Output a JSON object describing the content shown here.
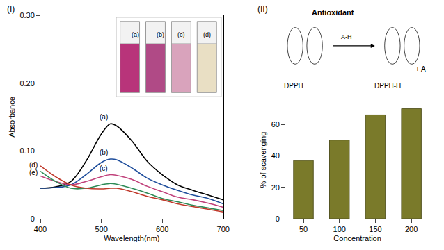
{
  "chart_data": [
    {
      "type": "line",
      "title": "(I)",
      "x_label": "Wavelength(nm)",
      "y_label": "Absorbance",
      "x": [
        400,
        425,
        450,
        475,
        500,
        515,
        525,
        550,
        575,
        600,
        625,
        650,
        675,
        700
      ],
      "series": [
        {
          "name": "(a)",
          "color": "#000000",
          "values": [
            0.045,
            0.047,
            0.055,
            0.085,
            0.125,
            0.14,
            0.137,
            0.115,
            0.085,
            0.065,
            0.05,
            0.042,
            0.035,
            0.028
          ]
        },
        {
          "name": "(b)",
          "color": "#1f4e9c",
          "values": [
            0.045,
            0.046,
            0.05,
            0.065,
            0.083,
            0.088,
            0.087,
            0.075,
            0.06,
            0.05,
            0.042,
            0.035,
            0.03,
            0.022
          ]
        },
        {
          "name": "(c)",
          "color": "#c0407a",
          "values": [
            0.063,
            0.055,
            0.05,
            0.055,
            0.062,
            0.065,
            0.064,
            0.058,
            0.048,
            0.04,
            0.032,
            0.028,
            0.023,
            0.017
          ]
        },
        {
          "name": "(d)",
          "color": "#2e8b57",
          "values": [
            0.07,
            0.055,
            0.045,
            0.045,
            0.05,
            0.052,
            0.051,
            0.045,
            0.038,
            0.03,
            0.025,
            0.02,
            0.016,
            0.012
          ]
        },
        {
          "name": "(e)",
          "color": "#c0392b",
          "values": [
            0.078,
            0.062,
            0.05,
            0.045,
            0.044,
            0.045,
            0.045,
            0.04,
            0.033,
            0.028,
            0.022,
            0.018,
            0.014,
            0.01
          ]
        }
      ],
      "xlim": [
        400,
        700
      ],
      "xticks": [
        400,
        500,
        600,
        700
      ],
      "ylim": [
        0,
        0.3
      ],
      "yticks": [
        0,
        {
          "value": 0.1,
          "label": "0.10"
        },
        {
          "value": 0.2,
          "label": "0.20"
        },
        {
          "value": 0.3,
          "label": "0.30"
        }
      ],
      "grid": false
    },
    {
      "type": "bar",
      "title": "(II)",
      "x_label": "Concentration",
      "y_label": "% of scavenging",
      "annotations": [
        "Antioxidant",
        "DPPH",
        "DPPH-H",
        "A-H",
        "+ A·"
      ],
      "categories": [
        "50",
        "100",
        "150",
        "200"
      ],
      "values": [
        37,
        50,
        66,
        70
      ],
      "color": "#7a7a2a",
      "ylim": [
        0,
        75
      ],
      "yticks": [
        0,
        20,
        40,
        60
      ],
      "grid": false
    }
  ]
}
